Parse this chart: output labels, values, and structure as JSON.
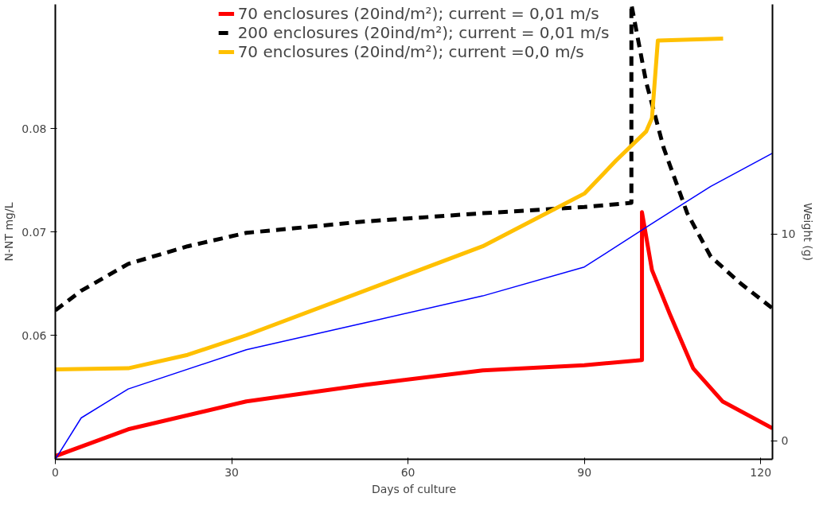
{
  "chart_data": {
    "type": "line",
    "xlabel": "Days of culture",
    "ylabel": "N-NT mg/L",
    "y2label": "Weight (g)",
    "xlim": [
      0,
      122
    ],
    "xticks": [
      0,
      30,
      60,
      90,
      120
    ],
    "ylim": [
      0.048,
      0.092
    ],
    "yticks": [
      0.06,
      0.07,
      0.08
    ],
    "y2lim": [
      -0.9,
      21.1
    ],
    "y2ticks": [
      0,
      10
    ],
    "grid": false,
    "legend": "top",
    "marker": "none",
    "series": [
      {
        "name": "70 enclosures (20ind/m²); current = 0,01 m/s",
        "color": "#ff0000",
        "line_style": "solid",
        "x": [
          0,
          12.4,
          32.5,
          52.6,
          72.7,
          90,
          99.8,
          99.8,
          101.5,
          104.5,
          108.5,
          113.5,
          122
        ],
        "values": [
          0.0483,
          0.0509,
          0.0536,
          0.0552,
          0.0566,
          0.0571,
          0.0576,
          0.0719,
          0.0663,
          0.0621,
          0.0568,
          0.0536,
          0.051
        ]
      },
      {
        "name": "200 enclosures (20ind/m²); current = 0,01 m/s",
        "color": "#000000",
        "line_style": "dashed",
        "x": [
          0,
          4.4,
          12.4,
          22.5,
          32.5,
          52.6,
          72.7,
          90,
          98,
          98,
          100.5,
          103.5,
          107.5,
          111.5,
          116.6,
          122
        ],
        "values": [
          0.0624,
          0.0643,
          0.0669,
          0.0686,
          0.0699,
          0.071,
          0.0718,
          0.0724,
          0.0728,
          0.092,
          0.0845,
          0.0781,
          0.0718,
          0.0676,
          0.065,
          0.0626
        ]
      },
      {
        "name": "70 enclosures (20ind/m²); current =0,0 m/s",
        "color": "#ffc000",
        "line_style": "solid",
        "x": [
          0,
          12.4,
          22.5,
          32.5,
          52.6,
          72.7,
          90,
          95.4,
          100.5,
          101.5,
          102.5,
          113.6
        ],
        "values": [
          0.0567,
          0.0568,
          0.0581,
          0.06,
          0.0643,
          0.0686,
          0.0737,
          0.0769,
          0.0797,
          0.081,
          0.0885,
          0.0887
        ]
      },
      {
        "color": "#0000ff",
        "line_style": "solid",
        "axis": "y2",
        "x": [
          0,
          4.4,
          12.4,
          32.5,
          52.6,
          72.7,
          90,
          101.5,
          111.5,
          122
        ],
        "values": [
          -0.9,
          1.1,
          2.5,
          4.4,
          5.7,
          7.0,
          8.4,
          10.5,
          12.3,
          13.9
        ]
      }
    ]
  }
}
